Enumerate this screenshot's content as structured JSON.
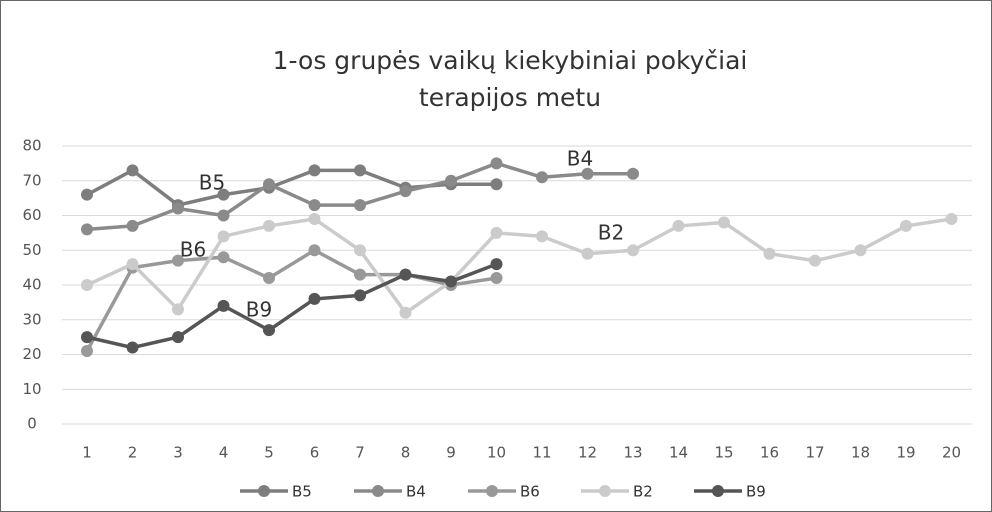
{
  "chart_data": {
    "type": "line",
    "title": [
      "1-os grupės vaikų kiekybiniai pokyčiai",
      "terapijos metu"
    ],
    "categories": [
      "1",
      "2",
      "3",
      "4",
      "5",
      "6",
      "7",
      "8",
      "9",
      "10",
      "11",
      "12",
      "13",
      "14",
      "15",
      "16",
      "17",
      "18",
      "19",
      "20"
    ],
    "series": [
      {
        "name": "B5",
        "color": "#7d7d7d",
        "values": [
          66,
          73,
          63,
          66,
          68,
          73,
          73,
          68,
          69,
          69,
          null,
          null,
          null,
          null,
          null,
          null,
          null,
          null,
          null,
          null
        ]
      },
      {
        "name": "B4",
        "color": "#8a8a8a",
        "values": [
          56,
          57,
          62,
          60,
          69,
          63,
          63,
          67,
          70,
          75,
          71,
          72,
          72,
          null,
          null,
          null,
          null,
          null,
          null,
          null
        ]
      },
      {
        "name": "B6",
        "color": "#999999",
        "values": [
          21,
          45,
          47,
          48,
          42,
          50,
          43,
          43,
          40,
          42,
          null,
          null,
          null,
          null,
          null,
          null,
          null,
          null,
          null,
          null
        ]
      },
      {
        "name": "B2",
        "color": "#cbcbcb",
        "values": [
          40,
          46,
          33,
          54,
          57,
          59,
          50,
          32,
          41,
          55,
          54,
          49,
          50,
          57,
          58,
          49,
          47,
          50,
          57,
          59
        ]
      },
      {
        "name": "B9",
        "color": "#555555",
        "values": [
          25,
          22,
          25,
          34,
          27,
          36,
          37,
          43,
          41,
          46,
          null,
          null,
          null,
          null,
          null,
          null,
          null,
          null,
          null,
          null
        ]
      }
    ],
    "annotations": [
      "B5",
      "B4",
      "B6",
      "B2",
      "B9"
    ],
    "ylim": [
      0,
      80
    ],
    "yticks": [
      0,
      10,
      20,
      30,
      40,
      50,
      60,
      70,
      80
    ],
    "grid": true,
    "legend": "bottom"
  }
}
